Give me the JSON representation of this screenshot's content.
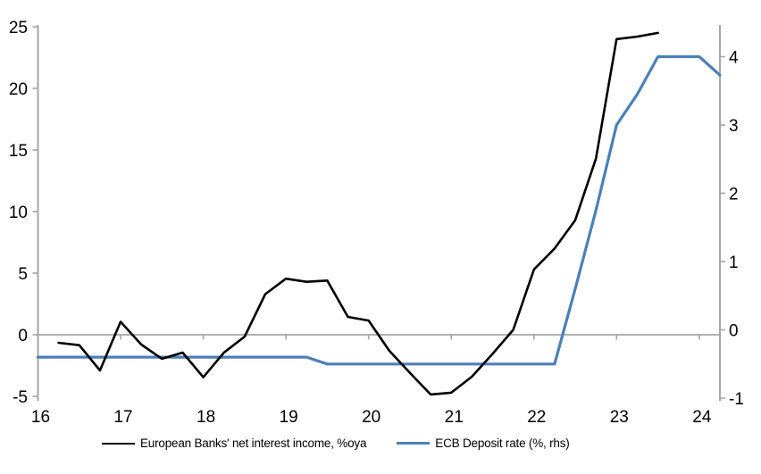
{
  "chart_data": {
    "type": "line",
    "title": "",
    "background": "#ffffff",
    "axis_color": "#a6a6a6",
    "text_color": "#000000",
    "zero_line": true,
    "grid": false,
    "legend_position": "bottom",
    "x_axis": {
      "label": "",
      "range": [
        16,
        24.25
      ],
      "tick_values": [
        16,
        17,
        18,
        19,
        20,
        21,
        22,
        23,
        24
      ],
      "tick_labels": [
        "16",
        "17",
        "18",
        "19",
        "20",
        "21",
        "22",
        "23",
        "24"
      ]
    },
    "left_axis": {
      "label": "",
      "range": [
        -5,
        25
      ],
      "tick_values": [
        25,
        20,
        15,
        10,
        5,
        0,
        -5
      ],
      "tick_labels": [
        "25",
        "20",
        "15",
        "10",
        "5",
        "0",
        "-5"
      ]
    },
    "right_axis": {
      "label": "",
      "range": [
        -1,
        4.5
      ],
      "tick_values": [
        4,
        3,
        2,
        1,
        0,
        -1
      ],
      "tick_labels": [
        "4",
        "3",
        "2",
        "1",
        "0",
        "-1"
      ]
    },
    "series": [
      {
        "name": "European Banks' net interest income, %oya",
        "color": "#000000",
        "axis": "left",
        "line_width": 2.6,
        "x": [
          16.25,
          16.5,
          16.75,
          17,
          17.25,
          17.5,
          17.75,
          18,
          18.25,
          18.5,
          18.75,
          19,
          19.25,
          19.5,
          19.75,
          20,
          20.25,
          20.5,
          20.75,
          21,
          21.25,
          21.5,
          21.75,
          22,
          22.25,
          22.5,
          22.75,
          23,
          23.25,
          23.5
        ],
        "values": [
          -0.65,
          -0.85,
          -2.9,
          1.05,
          -0.8,
          -1.95,
          -1.45,
          -3.45,
          -1.45,
          -0.15,
          3.3,
          4.55,
          4.3,
          4.4,
          1.45,
          1.15,
          -1.3,
          -3.1,
          -4.85,
          -4.7,
          -3.4,
          -1.55,
          0.4,
          5.3,
          7.0,
          9.3,
          14.3,
          24.0,
          24.2,
          24.5
        ]
      },
      {
        "name": "ECB Deposit rate (%, rhs)",
        "color": "#4b80b8",
        "axis": "right",
        "line_width": 3.2,
        "x": [
          16,
          16.25,
          16.5,
          16.75,
          17,
          17.25,
          17.5,
          17.75,
          18,
          18.25,
          18.5,
          18.75,
          19,
          19.25,
          19.5,
          19.75,
          20,
          20.25,
          20.5,
          20.75,
          21,
          21.25,
          21.5,
          21.75,
          22,
          22.25,
          22.5,
          22.75,
          23,
          23.25,
          23.5,
          23.75,
          24,
          24.25
        ],
        "values": [
          -0.4,
          -0.4,
          -0.4,
          -0.4,
          -0.4,
          -0.4,
          -0.4,
          -0.4,
          -0.4,
          -0.4,
          -0.4,
          -0.4,
          -0.4,
          -0.4,
          -0.5,
          -0.5,
          -0.5,
          -0.5,
          -0.5,
          -0.5,
          -0.5,
          -0.5,
          -0.5,
          -0.5,
          -0.5,
          -0.5,
          0.6,
          1.75,
          3.0,
          3.45,
          4.0,
          4.0,
          4.0,
          3.73
        ]
      }
    ]
  }
}
